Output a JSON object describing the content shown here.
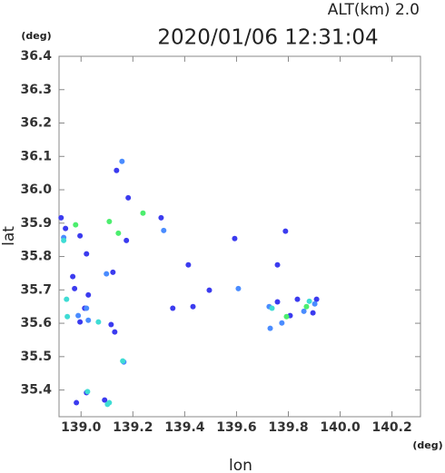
{
  "chart_data": {
    "type": "scatter",
    "title": "2020/01/06 12:31:04",
    "subtitle": "ALT(km) 2.0",
    "x_label": "lon",
    "y_label": "lat",
    "x_unit": "(deg)",
    "y_unit": "(deg)",
    "xlim": [
      138.915,
      140.31
    ],
    "ylim": [
      35.32,
      36.4
    ],
    "xticks": [
      {
        "value": 139.0,
        "label": "139.0"
      },
      139.2,
      139.4,
      139.6,
      139.8,
      {
        "value": 140.0,
        "label": "140.0"
      },
      140.2
    ],
    "yticks": [
      36.4,
      36.3,
      36.2,
      36.1,
      {
        "value": 36.0,
        "label": "36.0"
      },
      35.9,
      35.8,
      35.7,
      35.6,
      35.5,
      35.4
    ],
    "series": [
      {
        "color": "#3b3bef",
        "x": [
          138.923,
          138.94,
          138.996,
          139.021,
          138.968,
          138.975,
          139.028,
          138.996,
          139.014,
          139.116,
          139.13,
          139.175,
          139.309,
          139.123,
          139.182,
          139.137,
          139.789,
          139.593,
          139.758,
          139.909,
          139.835,
          139.807,
          139.895,
          139.758,
          139.354,
          139.432,
          139.495,
          139.414,
          138.982,
          139.091,
          139.021
        ],
        "values": [
          35.916,
          35.884,
          35.862,
          35.808,
          35.74,
          35.704,
          35.685,
          35.604,
          35.645,
          35.596,
          35.574,
          35.848,
          35.916,
          35.753,
          35.976,
          36.058,
          35.876,
          35.854,
          35.775,
          35.672,
          35.672,
          35.623,
          35.631,
          35.664,
          35.645,
          35.65,
          35.699,
          35.775,
          35.362,
          35.37,
          35.392
        ]
      },
      {
        "color": "#4a8cff",
        "x": [
          139.158,
          138.933,
          139.021,
          139.028,
          138.989,
          139.098,
          139.319,
          139.607,
          139.86,
          139.726,
          139.775,
          139.73,
          139.165,
          139.902
        ],
        "values": [
          36.085,
          35.857,
          35.645,
          35.609,
          35.623,
          35.748,
          35.878,
          35.704,
          35.636,
          35.65,
          35.601,
          35.585,
          35.484,
          35.658
        ]
      },
      {
        "color": "#3fdcd4",
        "x": [
          138.933,
          138.944,
          138.947,
          139.067,
          139.025,
          139.102,
          139.161,
          139.109,
          139.737,
          139.881
        ],
        "values": [
          35.848,
          35.672,
          35.62,
          35.604,
          35.395,
          35.357,
          35.487,
          35.362,
          35.645,
          35.666
        ]
      },
      {
        "color": "#4cee6e",
        "x": [
          138.979,
          139.109,
          139.239,
          139.793,
          139.144,
          139.87
        ],
        "values": [
          35.895,
          35.905,
          35.93,
          35.62,
          35.87,
          35.65
        ]
      }
    ]
  }
}
